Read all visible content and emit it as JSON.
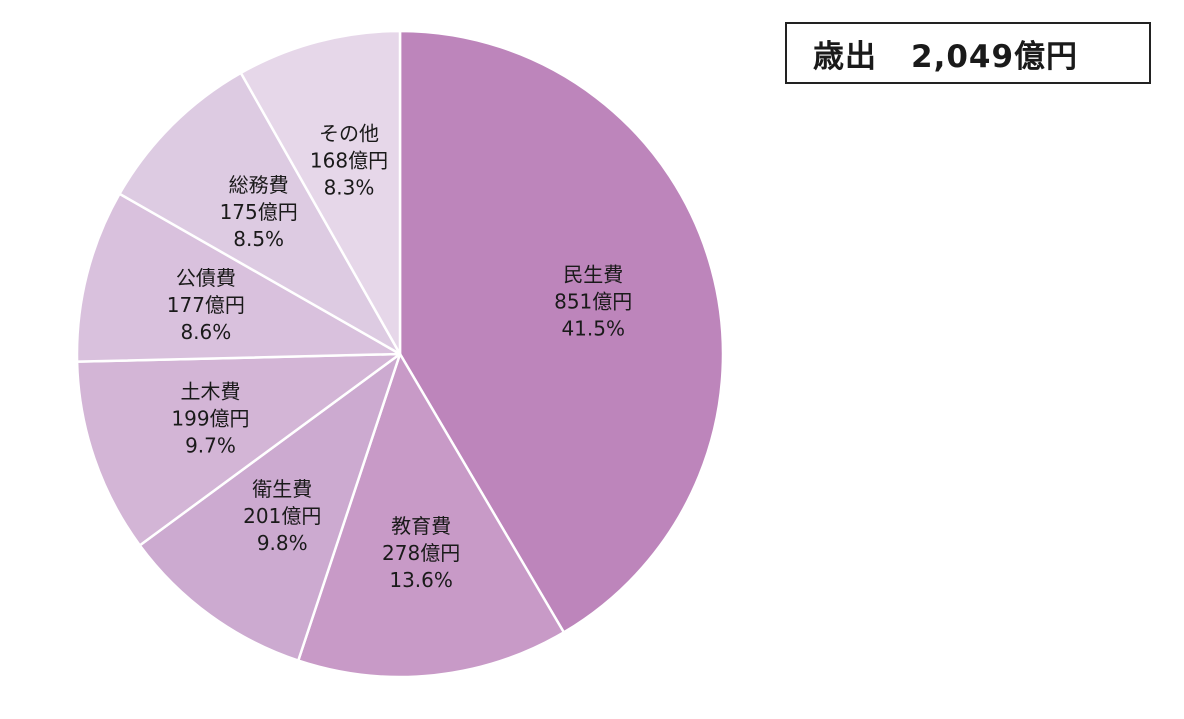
{
  "header": {
    "label": "歳出",
    "total": "2,049億円"
  },
  "chart_data": {
    "type": "pie",
    "title": "",
    "total_label": "歳出",
    "total_value": "2,049億円",
    "start_angle": "top (12 o'clock)",
    "direction": "clockwise",
    "unit": "億円",
    "slices": [
      {
        "name": "民生費",
        "value": 851,
        "amount_label": "851億円",
        "percent": 41.5,
        "percent_label": "41.5%",
        "color": "#bd85bb"
      },
      {
        "name": "教育費",
        "value": 278,
        "amount_label": "278億円",
        "percent": 13.6,
        "percent_label": "13.6%",
        "color": "#c89ac7"
      },
      {
        "name": "衛生費",
        "value": 201,
        "amount_label": "201億円",
        "percent": 9.8,
        "percent_label": "9.8%",
        "color": "#ccaad0"
      },
      {
        "name": "土木費",
        "value": 199,
        "amount_label": "199億円",
        "percent": 9.7,
        "percent_label": "9.7%",
        "color": "#d3b5d6"
      },
      {
        "name": "公債費",
        "value": 177,
        "amount_label": "177億円",
        "percent": 8.6,
        "percent_label": "8.6%",
        "color": "#d9c1dd"
      },
      {
        "name": "総務費",
        "value": 175,
        "amount_label": "175億円",
        "percent": 8.5,
        "percent_label": "8.5%",
        "color": "#ddcbe2"
      },
      {
        "name": "その他",
        "value": 168,
        "amount_label": "168億円",
        "percent": 8.3,
        "percent_label": "8.3%",
        "color": "#e6d7e9"
      }
    ]
  }
}
